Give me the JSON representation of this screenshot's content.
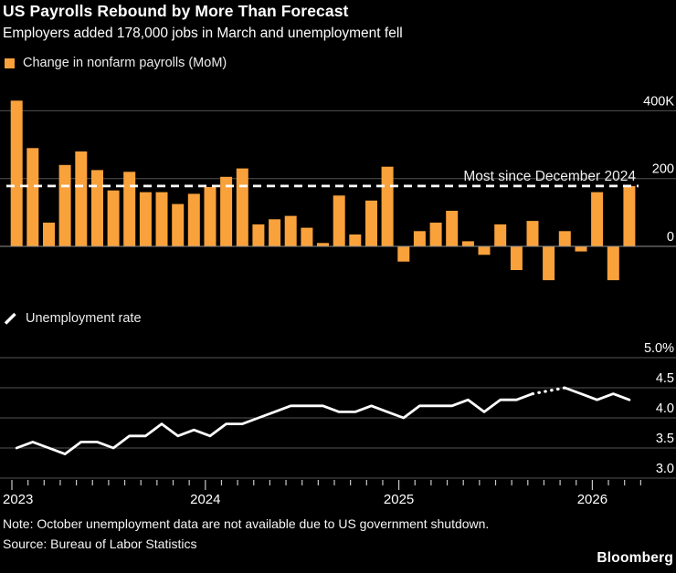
{
  "header": {
    "title": "US Payrolls Rebound by More Than Forecast",
    "subtitle": "Employers added 178,000 jobs in March and unemployment fell"
  },
  "legends": {
    "payrolls": "Change in nonfarm payrolls (MoM)",
    "unemployment": "Unemployment rate"
  },
  "footer": {
    "note": "Note: October unemployment data are not available due to US government shutdown.",
    "source": "Source: Bureau of Labor Statistics",
    "logo": "Bloomberg"
  },
  "colors": {
    "background": "#000000",
    "bar": "#F9A13B",
    "line": "#FFFFFF",
    "grid": "#555555",
    "zero_line": "#909090",
    "tick": "#c8c8c8",
    "axis_text": "#FFFFFF",
    "annotation_text": "#efefef",
    "dashed_line": "#FFFFFF"
  },
  "chart_data": [
    {
      "type": "bar",
      "title": "Change in nonfarm payrolls (MoM)",
      "unit": "thousands of jobs",
      "categories": [
        "2023-01",
        "2023-02",
        "2023-03",
        "2023-04",
        "2023-05",
        "2023-06",
        "2023-07",
        "2023-08",
        "2023-09",
        "2023-10",
        "2023-11",
        "2023-12",
        "2024-01",
        "2024-02",
        "2024-03",
        "2024-04",
        "2024-05",
        "2024-06",
        "2024-07",
        "2024-08",
        "2024-09",
        "2024-10",
        "2024-11",
        "2024-12",
        "2025-01",
        "2025-02",
        "2025-03",
        "2025-04",
        "2025-05",
        "2025-06",
        "2025-07",
        "2025-08",
        "2025-09",
        "2025-10",
        "2025-11",
        "2025-12",
        "2026-01",
        "2026-02",
        "2026-03"
      ],
      "values": [
        430,
        290,
        70,
        240,
        280,
        225,
        165,
        220,
        160,
        160,
        125,
        155,
        175,
        205,
        230,
        65,
        80,
        90,
        55,
        10,
        150,
        35,
        135,
        235,
        -45,
        45,
        70,
        105,
        15,
        -25,
        65,
        -70,
        75,
        -100,
        45,
        -15,
        160,
        -100,
        178
      ],
      "yticks": [
        {
          "label": "400K",
          "value": 400
        },
        {
          "label": "200",
          "value": 200
        },
        {
          "label": "0",
          "value": 0
        }
      ],
      "ylim": [
        -130,
        460
      ],
      "grid": true,
      "reference_line": {
        "value": 178,
        "label": "Most since December 2024",
        "style": "dashed"
      }
    },
    {
      "type": "line",
      "title": "Unemployment rate",
      "unit": "percent",
      "categories": [
        "2023-01",
        "2023-02",
        "2023-03",
        "2023-04",
        "2023-05",
        "2023-06",
        "2023-07",
        "2023-08",
        "2023-09",
        "2023-10",
        "2023-11",
        "2023-12",
        "2024-01",
        "2024-02",
        "2024-03",
        "2024-04",
        "2024-05",
        "2024-06",
        "2024-07",
        "2024-08",
        "2024-09",
        "2024-10",
        "2024-11",
        "2024-12",
        "2025-01",
        "2025-02",
        "2025-03",
        "2025-04",
        "2025-05",
        "2025-06",
        "2025-07",
        "2025-08",
        "2025-09",
        "2025-10",
        "2025-11",
        "2025-12",
        "2026-01",
        "2026-02",
        "2026-03"
      ],
      "values": [
        3.5,
        3.6,
        3.5,
        3.4,
        3.6,
        3.6,
        3.5,
        3.7,
        3.7,
        3.9,
        3.7,
        3.8,
        3.7,
        3.9,
        3.9,
        4.0,
        4.1,
        4.2,
        4.2,
        4.2,
        4.1,
        4.1,
        4.2,
        4.1,
        4.0,
        4.2,
        4.2,
        4.2,
        4.3,
        4.1,
        4.3,
        4.3,
        4.4,
        null,
        4.5,
        4.4,
        4.3,
        4.4,
        4.3
      ],
      "yticks": [
        {
          "label": "5.0%",
          "value": 5.0
        },
        {
          "label": "4.5",
          "value": 4.5
        },
        {
          "label": "4.0",
          "value": 4.0
        },
        {
          "label": "3.5",
          "value": 3.5
        },
        {
          "label": "3.0",
          "value": 3.0
        }
      ],
      "ylim": [
        2.9,
        5.1
      ],
      "grid": true,
      "missing_data_style": "dotted",
      "x_year_labels": [
        "2023",
        "2024",
        "2025",
        "2026"
      ]
    }
  ]
}
